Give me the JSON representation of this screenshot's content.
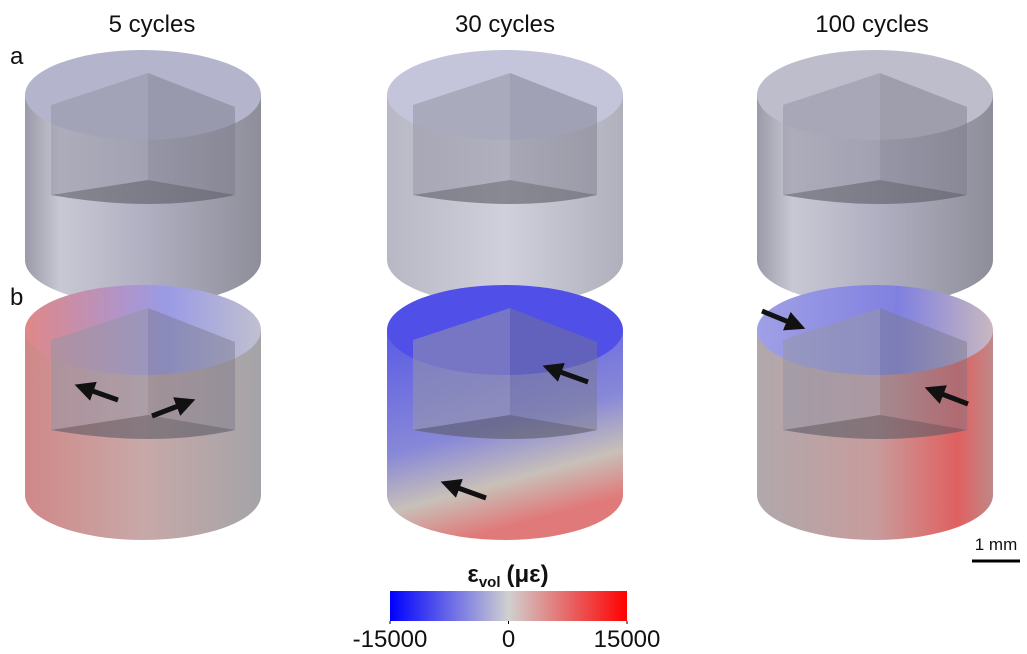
{
  "columns": [
    "5 cycles",
    "30 cycles",
    "100 cycles"
  ],
  "rows": [
    "a",
    "b"
  ],
  "colorbar": {
    "label": "ε",
    "subscript": "vol",
    "unit": "(με)",
    "lim": [
      -15000,
      15000
    ],
    "ticks": [
      -15000,
      0,
      15000
    ],
    "colors": [
      "#0000ff",
      "#d0d0d0",
      "#ff0000"
    ]
  },
  "scale_bar": "1 mm"
}
